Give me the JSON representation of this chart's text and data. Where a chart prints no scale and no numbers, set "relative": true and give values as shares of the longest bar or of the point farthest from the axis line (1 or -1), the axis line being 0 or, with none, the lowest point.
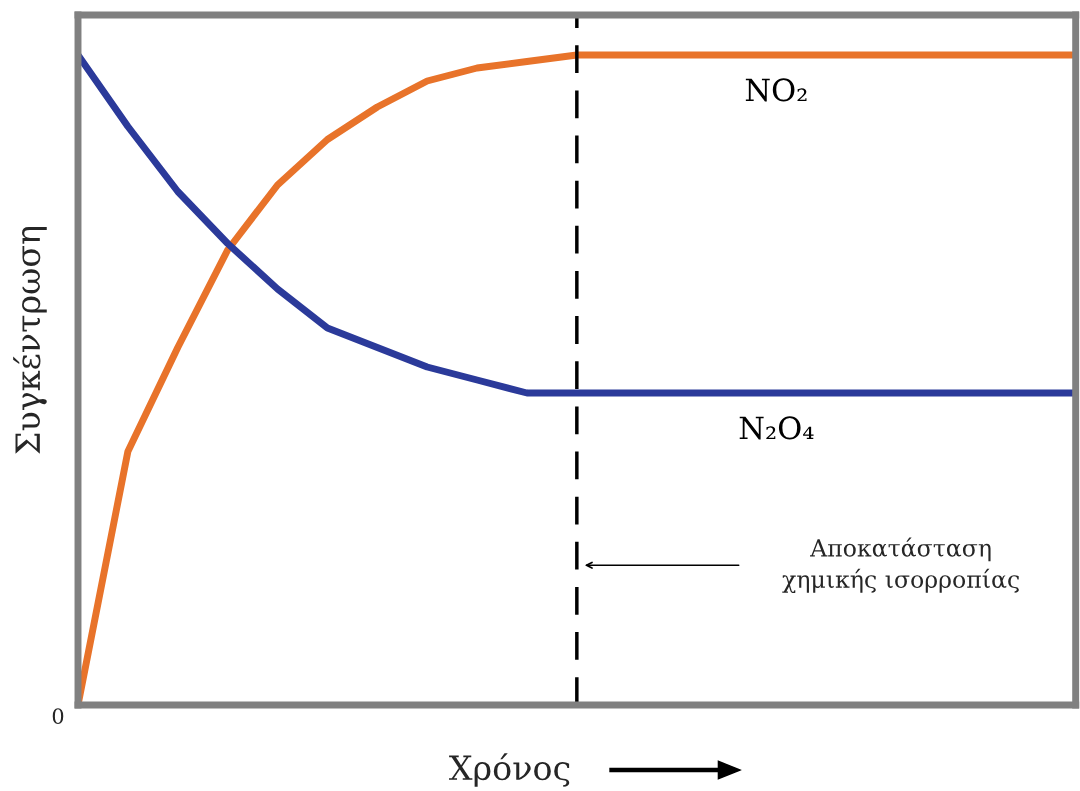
{
  "chart_data": {
    "type": "line",
    "relative": true,
    "xlabel": "Χρόνος",
    "ylabel": "Συγκέντρωση",
    "categories": [
      null,
      null,
      null,
      null,
      null,
      null,
      null,
      null,
      null,
      null,
      null,
      null,
      null,
      null,
      null,
      null,
      null,
      null,
      null,
      null,
      null
    ],
    "line_style": "solid",
    "series": [
      {
        "name": "NO₂",
        "color": "#e8732a",
        "values": [
          0,
          0.39,
          0.55,
          0.7,
          0.8,
          0.87,
          0.92,
          0.96,
          0.98,
          0.99,
          1,
          1,
          1,
          1,
          1,
          1,
          1,
          1,
          1,
          1,
          1
        ]
      },
      {
        "name": "N₂O₄",
        "color": "#2b3a9a",
        "values": [
          1,
          0.89,
          0.79,
          0.71,
          0.64,
          0.58,
          0.55,
          0.52,
          0.5,
          0.48,
          0.48,
          0.48,
          0.48,
          0.48,
          0.48,
          0.48,
          0.48,
          0.48,
          0.48,
          0.48,
          0.48
        ]
      }
    ],
    "annotations": [
      "0",
      "Αποκατάσταση\nχημικής ισορροπίας"
    ]
  }
}
